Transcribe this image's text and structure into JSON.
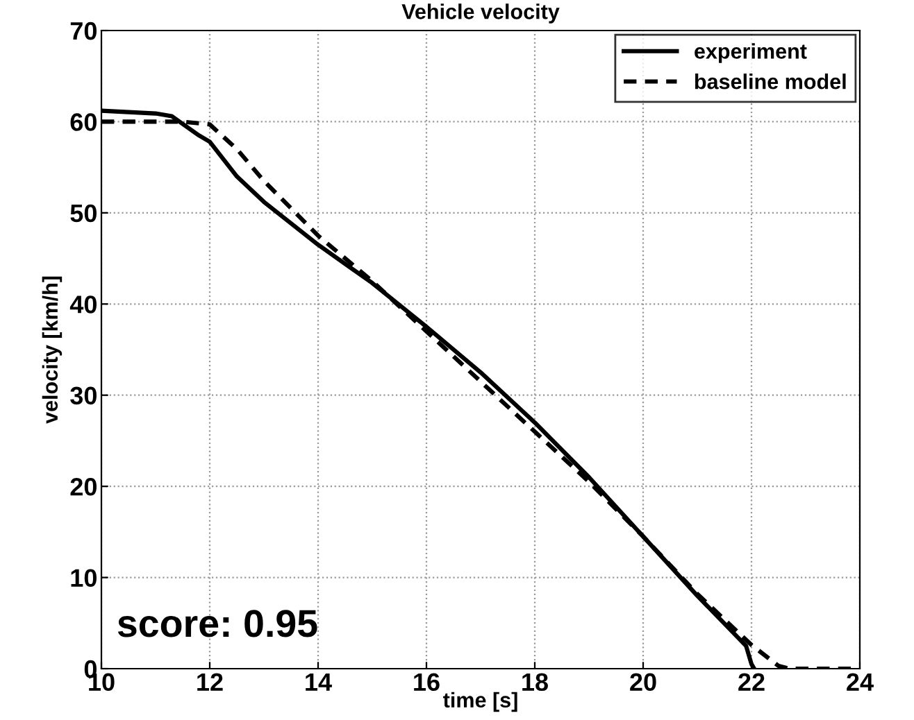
{
  "chart_data": {
    "type": "line",
    "title": "Vehicle velocity",
    "xlabel": "time [s]",
    "ylabel": "velocity [km/h]",
    "xlim": [
      10,
      24
    ],
    "xticks": [
      10,
      12,
      14,
      16,
      18,
      20,
      22,
      24
    ],
    "ylim": [
      0,
      70
    ],
    "yticks": [
      0,
      10,
      20,
      30,
      40,
      50,
      60,
      70
    ],
    "grid": true,
    "legend": "top right",
    "annotations": [
      "score: 0.95"
    ],
    "series": [
      {
        "name": "experiment",
        "color": "#000000",
        "line_style": "solid",
        "x": [
          10,
          11,
          11.3,
          11.8,
          12,
          12.5,
          13,
          14,
          15,
          16,
          17,
          18,
          19,
          20,
          21,
          21.9,
          22,
          22.05
        ],
        "values": [
          61.2,
          60.9,
          60.6,
          58.5,
          57.8,
          54,
          51.2,
          46.5,
          42.3,
          37.5,
          32.5,
          27,
          21,
          14.5,
          8,
          2.5,
          0.5,
          0
        ]
      },
      {
        "name": "baseline model",
        "color": "#000000",
        "line_style": "dashed",
        "x": [
          10,
          11.5,
          12,
          12.5,
          13,
          14,
          15,
          16,
          17,
          18,
          19,
          20,
          21,
          22,
          22.5,
          22.7,
          24
        ],
        "values": [
          60,
          60,
          59.7,
          57,
          53.5,
          47.5,
          42.5,
          37,
          31.5,
          26,
          20.5,
          14.5,
          8.2,
          2.6,
          0.3,
          0,
          0
        ]
      }
    ]
  }
}
